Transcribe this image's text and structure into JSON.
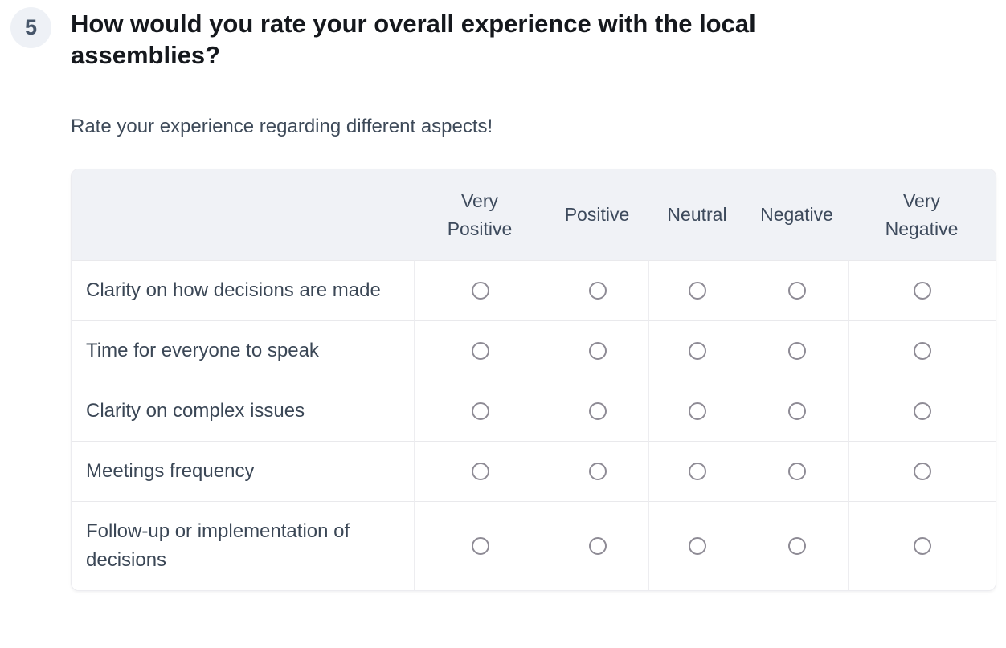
{
  "question": {
    "number": "5",
    "title": "How would you rate your overall experience with the local assemblies?",
    "description": "Rate your experience regarding different aspects!"
  },
  "matrix": {
    "columns": [
      "Very Positive",
      "Positive",
      "Neutral",
      "Negative",
      "Very Negative"
    ],
    "rows": [
      "Clarity on how decisions are made",
      "Time for everyone to speak",
      "Clarity on complex issues",
      "Meetings frequency",
      "Follow-up or implementation of decisions"
    ],
    "selected_answers": []
  },
  "colors": {
    "header_background": "#f0f2f6",
    "badge_background": "#eef1f6",
    "text_slate": "#3d4a5c",
    "radio_border": "#8e8b95",
    "divider": "#e9e9ec"
  }
}
